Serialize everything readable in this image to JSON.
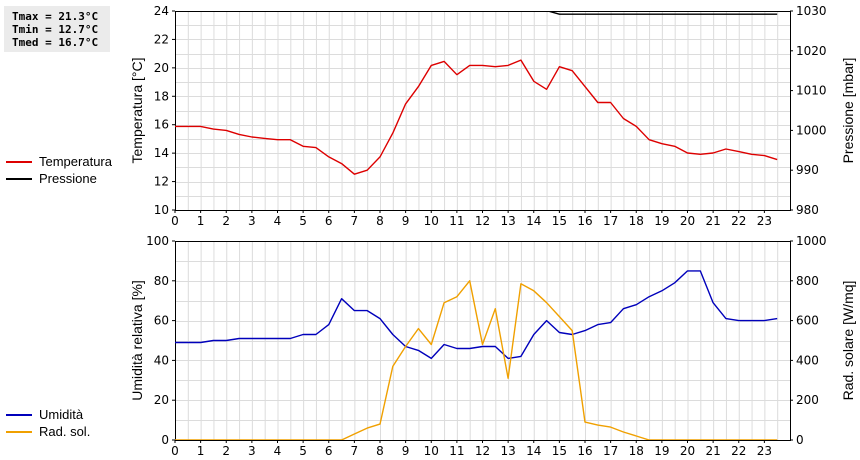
{
  "stats": {
    "tmax": "Tmax = 21.3°C",
    "tmin": "Tmin = 12.7°C",
    "tmed": "Tmed = 16.7°C"
  },
  "legend_top": [
    {
      "label": "Temperatura",
      "color": "#dd0000"
    },
    {
      "label": "Pressione",
      "color": "#000000"
    }
  ],
  "legend_bottom": [
    {
      "label": "Umidità",
      "color": "#0000bb"
    },
    {
      "label": "Rad. sol.",
      "color": "#f0a000"
    }
  ],
  "chart_data": [
    {
      "type": "line",
      "grid": true,
      "x_ticks": [
        "0",
        "1",
        "2",
        "3",
        "4",
        "5",
        "6",
        "7",
        "8",
        "9",
        "10",
        "11",
        "12",
        "13",
        "14",
        "15",
        "16",
        "17",
        "18",
        "19",
        "20",
        "21",
        "22",
        "23"
      ],
      "xlim": [
        0,
        24
      ],
      "ylabel": "Temperatura [°C]",
      "ylim": [
        10,
        25
      ],
      "y_ticks": [
        "10",
        "12",
        "14",
        "16",
        "18",
        "20",
        "22",
        "24"
      ],
      "y2label": "Pressione [mbar]",
      "y2lim": [
        980,
        1030
      ],
      "y2_ticks": [
        "980",
        "990",
        "1000",
        "1010",
        "1020",
        "1030"
      ],
      "series": [
        {
          "name": "Temperatura",
          "axis": "left",
          "color": "#dd0000",
          "x": [
            0,
            0.5,
            1,
            1.5,
            2,
            2.5,
            3,
            3.5,
            4,
            4.5,
            5,
            5.5,
            6,
            6.5,
            7,
            7.5,
            8,
            8.5,
            9,
            9.5,
            10,
            10.5,
            11,
            11.5,
            12,
            12.5,
            13,
            13.5,
            14,
            14.5,
            15,
            15.5,
            16,
            16.5,
            17,
            17.5,
            18,
            18.5,
            19,
            19.5,
            20,
            20.5,
            21,
            21.5,
            22,
            22.5,
            23,
            23.5
          ],
          "y": [
            16.3,
            16.3,
            16.3,
            16.1,
            16.0,
            15.7,
            15.5,
            15.4,
            15.3,
            15.3,
            14.8,
            14.7,
            14.0,
            13.5,
            12.7,
            13.0,
            14.0,
            15.8,
            18.0,
            19.3,
            20.9,
            21.2,
            20.2,
            20.9,
            20.9,
            20.8,
            20.9,
            21.3,
            19.7,
            19.1,
            20.8,
            20.5,
            19.3,
            18.1,
            18.1,
            16.9,
            16.3,
            15.3,
            15.0,
            14.8,
            14.3,
            14.2,
            14.3,
            14.6,
            14.4,
            14.2,
            14.1,
            13.8
          ]
        },
        {
          "name": "Pressione",
          "axis": "right",
          "color": "#000000",
          "x": [
            0,
            0.5,
            1,
            1.5,
            2,
            2.5,
            3,
            3.5,
            4,
            4.5,
            5,
            5.5,
            6,
            6.5,
            7,
            7.5,
            8,
            8.5,
            9,
            9.5,
            10,
            10.5,
            11,
            11.5,
            12,
            12.5,
            13,
            13.5,
            14,
            14.5,
            15,
            15.5,
            16,
            16.5,
            17,
            17.5,
            18,
            18.5,
            19,
            19.5,
            20,
            20.5,
            21,
            21.5,
            22,
            22.5,
            23,
            23.5
          ],
          "y": [
            1034,
            1034,
            1034,
            1034,
            1034,
            1034,
            1034,
            1034,
            1034,
            1034,
            1034,
            1034,
            1034,
            1034,
            1034,
            1034,
            1034,
            1034,
            1034,
            1034,
            1034,
            1034,
            1034,
            1034,
            1034,
            1034,
            1034,
            1034,
            1034,
            1030.1,
            1029.2,
            1029.2,
            1029.2,
            1029.2,
            1029.2,
            1029.2,
            1029.2,
            1029.2,
            1029.2,
            1029.2,
            1029.2,
            1029.2,
            1029.2,
            1029.2,
            1029.2,
            1029.2,
            1029.2,
            1029.2
          ]
        }
      ]
    },
    {
      "type": "line",
      "grid": true,
      "x_ticks": [
        "0",
        "1",
        "2",
        "3",
        "4",
        "5",
        "6",
        "7",
        "8",
        "9",
        "10",
        "11",
        "12",
        "13",
        "14",
        "15",
        "16",
        "17",
        "18",
        "19",
        "20",
        "21",
        "22",
        "23"
      ],
      "xlim": [
        0,
        24
      ],
      "ylabel": "Umidità relativa [%]",
      "ylim": [
        0,
        100
      ],
      "y_ticks": [
        "0",
        "20",
        "40",
        "60",
        "80",
        "100"
      ],
      "y2label": "Rad. solare [W/mq]",
      "y2lim": [
        0,
        1000
      ],
      "y2_ticks": [
        "0",
        "200",
        "400",
        "600",
        "800",
        "1000"
      ],
      "series": [
        {
          "name": "Umidità",
          "axis": "left",
          "color": "#0000bb",
          "x": [
            0,
            0.5,
            1,
            1.5,
            2,
            2.5,
            3,
            3.5,
            4,
            4.5,
            5,
            5.5,
            6,
            6.5,
            7,
            7.5,
            8,
            8.5,
            9,
            9.5,
            10,
            10.5,
            11,
            11.5,
            12,
            12.5,
            13,
            13.5,
            14,
            14.5,
            15,
            15.5,
            16,
            16.5,
            17,
            17.5,
            18,
            18.5,
            19,
            19.5,
            20,
            20.5,
            21,
            21.5,
            22,
            22.5,
            23,
            23.5
          ],
          "y": [
            49,
            49,
            49,
            50,
            50,
            51,
            51,
            51,
            51,
            51,
            53,
            53,
            58,
            71,
            65,
            65,
            61,
            53,
            47,
            45,
            41,
            48,
            46,
            46,
            47,
            47,
            41,
            42,
            53,
            60,
            54,
            53,
            55,
            58,
            59,
            66,
            68,
            72,
            75,
            79,
            85,
            85,
            69,
            61,
            60,
            60,
            60,
            61
          ]
        },
        {
          "name": "Rad. sol.",
          "axis": "right",
          "color": "#f0a000",
          "x": [
            0,
            0.5,
            1,
            1.5,
            2,
            2.5,
            3,
            3.5,
            4,
            4.5,
            5,
            5.5,
            6,
            6.5,
            7,
            7.5,
            8,
            8.5,
            9,
            9.5,
            10,
            10.5,
            11,
            11.5,
            12,
            12.5,
            13,
            13.5,
            14,
            14.5,
            15,
            15.5,
            16,
            16.5,
            17,
            17.5,
            18,
            18.5,
            19,
            19.5,
            20,
            20.5,
            21,
            21.5,
            22,
            22.5,
            23,
            23.5
          ],
          "y": [
            0,
            0,
            0,
            0,
            0,
            0,
            0,
            0,
            0,
            0,
            0,
            0,
            0,
            0,
            30,
            60,
            80,
            370,
            470,
            560,
            480,
            690,
            720,
            800,
            480,
            660,
            310,
            785,
            750,
            690,
            620,
            550,
            90,
            75,
            65,
            40,
            20,
            0,
            0,
            0,
            0,
            0,
            0,
            0,
            0,
            0,
            0,
            0
          ]
        }
      ]
    }
  ]
}
